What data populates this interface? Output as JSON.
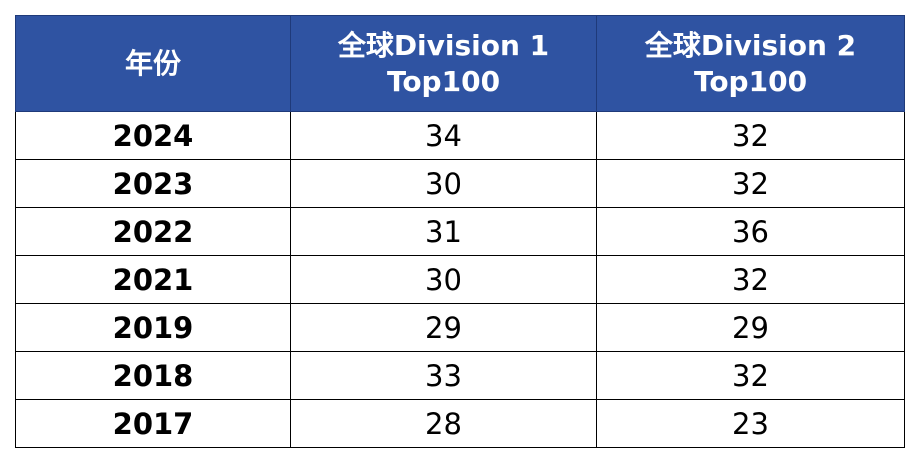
{
  "chart_data": {
    "type": "table",
    "columns": [
      {
        "lines": [
          "年份"
        ]
      },
      {
        "lines": [
          "全球Division 1",
          "Top100"
        ]
      },
      {
        "lines": [
          "全球Division 2",
          "Top100"
        ]
      }
    ],
    "rows": [
      {
        "year": "2024",
        "d1": "34",
        "d2": "32"
      },
      {
        "year": "2023",
        "d1": "30",
        "d2": "32"
      },
      {
        "year": "2022",
        "d1": "31",
        "d2": "36"
      },
      {
        "year": "2021",
        "d1": "30",
        "d2": "32"
      },
      {
        "year": "2019",
        "d1": "29",
        "d2": "29"
      },
      {
        "year": "2018",
        "d1": "33",
        "d2": "32"
      },
      {
        "year": "2017",
        "d1": "28",
        "d2": "23"
      }
    ],
    "colors": {
      "header_bg": "#2f53a2",
      "header_text": "#ffffff",
      "border": "#000000"
    }
  }
}
